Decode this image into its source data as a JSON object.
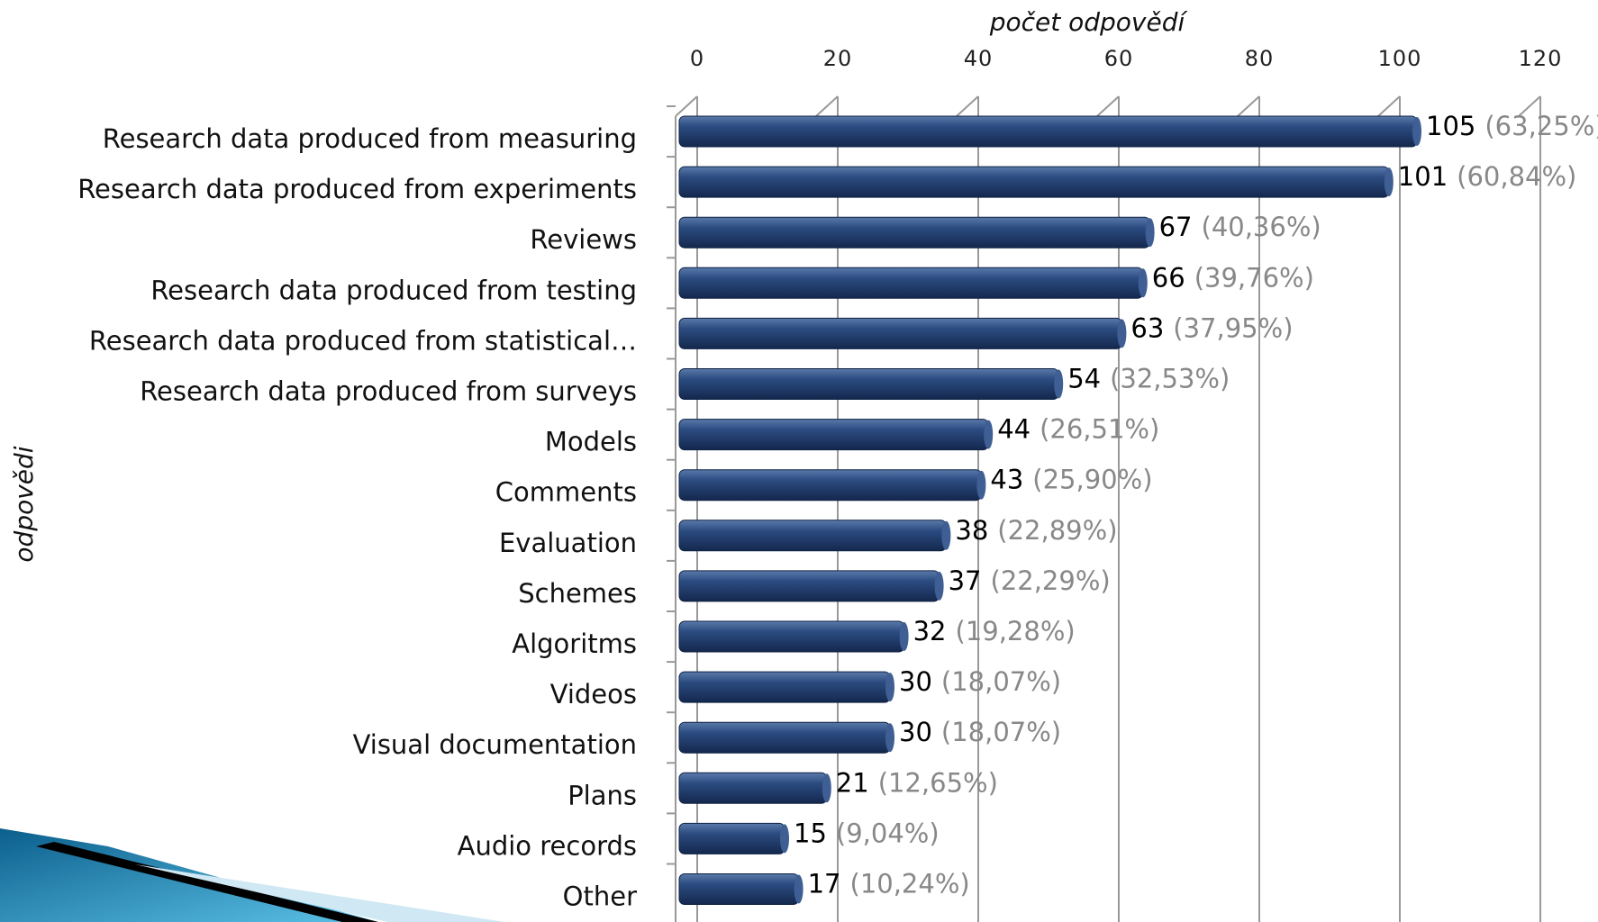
{
  "chart_data": {
    "type": "barh",
    "x_label": "počet  odpovědí",
    "y_label": "odpovědi",
    "categories": [
      "Research data produced from measuring",
      "Research data produced from experiments",
      "Reviews",
      "Research data produced from testing",
      "Research data produced from statistical…",
      "Research data produced from surveys",
      "Models",
      "Comments",
      "Evaluation",
      "Schemes",
      "Algoritms",
      "Videos",
      "Visual documentation",
      "Plans",
      "Audio records",
      "Other"
    ],
    "values": [
      105,
      101,
      67,
      66,
      63,
      54,
      44,
      43,
      38,
      37,
      32,
      30,
      30,
      21,
      15,
      17
    ],
    "percent_labels": [
      "(63,25%)",
      "(60,84%)",
      "(40,36%)",
      "(39,76%)",
      "(37,95%)",
      "(32,53%)",
      "(26,51%)",
      "(25,90%)",
      "(22,89%)",
      "(22,29%)",
      "(19,28%)",
      "(18,07%)",
      "(18,07%)",
      "(12,65%)",
      "(9,04%)",
      "(10,24%)"
    ],
    "color": "#1f3c6e",
    "xlim": [
      0,
      120
    ],
    "xticks": [
      0,
      20,
      40,
      60,
      80,
      100,
      120
    ],
    "grid": true
  }
}
